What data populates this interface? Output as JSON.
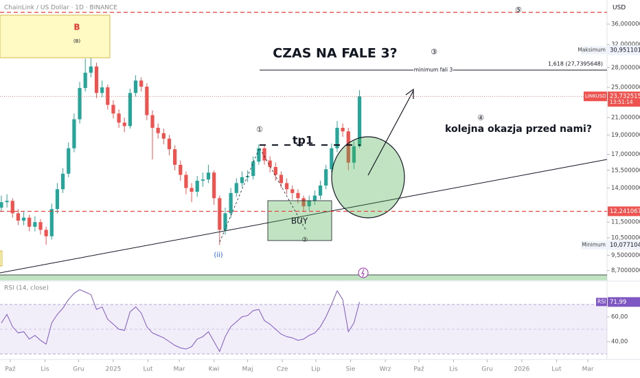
{
  "chart_data": [
    {
      "type": "candlestick",
      "title": "ChainLink / US Dollar · 1D · BINANCE",
      "currency": "USD",
      "symbol": "LINKUSD",
      "countdown": "13:51:14",
      "up_color": "#26a69a",
      "down_color": "#ef5350",
      "log_scale": true,
      "x": [
        -8,
        -3,
        2,
        7,
        12,
        17,
        22,
        27,
        32,
        37,
        42,
        47,
        52,
        57,
        62,
        67,
        72,
        77,
        82,
        87,
        92,
        97,
        102,
        107,
        112,
        117,
        122,
        127,
        132,
        137,
        142,
        147,
        152,
        157,
        162,
        167,
        172,
        177,
        182,
        187,
        192,
        197,
        202,
        207,
        212,
        217,
        222,
        227,
        232,
        237,
        242,
        247,
        252,
        257,
        262,
        267,
        272,
        277,
        282,
        287,
        292,
        297,
        302,
        307,
        312
      ],
      "open": [
        12.5,
        12.9,
        13.0,
        12.1,
        11.6,
        11.8,
        11.2,
        11.5,
        11.0,
        10.6,
        12.4,
        13.9,
        15.2,
        17.6,
        20.8,
        24.9,
        27.2,
        28.2,
        24.2,
        25.0,
        22.6,
        21.5,
        20.4,
        20.0,
        24.2,
        26.0,
        25.1,
        21.3,
        19.8,
        19.2,
        18.6,
        17.5,
        16.0,
        15.1,
        14.0,
        13.7,
        14.6,
        14.7,
        15.3,
        13.2,
        11.0,
        12.1,
        13.6,
        14.4,
        14.9,
        15.0,
        16.3,
        17.6,
        16.4,
        15.8,
        15.1,
        14.4,
        13.9,
        13.6,
        13.2,
        12.6,
        13.0,
        13.4,
        14.2,
        15.6,
        17.6,
        19.8,
        19.4,
        16.2,
        17.8
      ],
      "high": [
        13.4,
        13.5,
        13.2,
        12.4,
        12.2,
        12.0,
        11.9,
        11.7,
        11.2,
        12.8,
        14.4,
        15.7,
        18.2,
        21.5,
        25.8,
        29.5,
        30.9511019,
        28.8,
        26.0,
        25.4,
        23.2,
        22.0,
        21.0,
        24.8,
        26.8,
        26.5,
        25.6,
        21.9,
        20.3,
        19.7,
        19.0,
        17.9,
        16.4,
        15.4,
        14.4,
        15.0,
        15.3,
        16.0,
        15.5,
        13.4,
        12.5,
        14.0,
        14.8,
        15.4,
        15.5,
        16.8,
        18.0,
        17.9,
        16.8,
        16.2,
        15.4,
        14.8,
        14.2,
        13.9,
        13.4,
        13.4,
        13.8,
        14.6,
        16.0,
        18.1,
        20.6,
        20.3,
        19.8,
        18.3,
        24.6
      ],
      "low": [
        12.2,
        12.5,
        11.8,
        11.3,
        11.3,
        10.9,
        10.9,
        10.7,
        10.1,
        10.4,
        12.1,
        13.6,
        14.9,
        17.2,
        20.3,
        24.4,
        26.5,
        23.5,
        23.6,
        22.0,
        20.9,
        19.8,
        19.3,
        19.7,
        23.7,
        24.4,
        20.7,
        16.5,
        18.6,
        18.0,
        16.9,
        15.5,
        14.6,
        13.5,
        12.9,
        13.3,
        14.1,
        14.4,
        12.7,
        10.077104,
        10.7,
        11.8,
        13.3,
        14.1,
        14.5,
        14.7,
        16.0,
        16.0,
        15.3,
        14.6,
        14.0,
        13.5,
        13.1,
        12.8,
        12.2,
        12.3,
        12.7,
        13.1,
        13.9,
        15.3,
        17.2,
        18.8,
        15.5,
        15.6,
        17.6
      ],
      "close": [
        12.9,
        13.0,
        12.1,
        11.6,
        11.8,
        11.2,
        11.5,
        11.0,
        10.6,
        12.4,
        13.9,
        15.2,
        17.6,
        20.8,
        24.9,
        27.2,
        28.2,
        24.2,
        25.0,
        22.6,
        21.5,
        20.4,
        20.0,
        24.2,
        26.0,
        25.1,
        21.3,
        19.8,
        19.2,
        18.6,
        17.5,
        16.0,
        15.1,
        14.0,
        13.7,
        14.6,
        14.7,
        15.3,
        13.2,
        11.0,
        12.1,
        13.6,
        14.4,
        14.9,
        15.0,
        16.3,
        17.6,
        16.4,
        15.8,
        15.1,
        14.4,
        13.9,
        13.6,
        13.2,
        12.6,
        13.0,
        13.4,
        14.2,
        15.6,
        17.6,
        19.8,
        19.4,
        16.2,
        17.8,
        23.7325156
      ],
      "close_label": "23,7325156",
      "xlim": [
        -9.2,
        533.1
      ],
      "ylim": [
        8.22,
        41.35
      ],
      "yticks": [
        {
          "value": 36,
          "label": "36,0000000"
        },
        {
          "value": 32,
          "label": "32,0000000"
        },
        {
          "value": 28,
          "label": "28,0000000"
        },
        {
          "value": 25,
          "label": "25,0000000"
        },
        {
          "value": 21,
          "label": "21,0000000"
        },
        {
          "value": 19,
          "label": "19,0000000"
        },
        {
          "value": 17,
          "label": "17,0000000"
        },
        {
          "value": 15.5,
          "label": "15,5000000"
        },
        {
          "value": 14,
          "label": "14,0000000"
        },
        {
          "value": 11.5,
          "label": "11,5000000"
        },
        {
          "value": 10.5,
          "label": "10,5000000"
        },
        {
          "value": 9.5,
          "label": "9,5000000"
        },
        {
          "value": 8.7,
          "label": "8,7000000"
        }
      ],
      "xticks": [
        {
          "value": 0,
          "label": "Paź"
        },
        {
          "value": 31,
          "label": "Lis"
        },
        {
          "value": 61,
          "label": "Gru"
        },
        {
          "value": 92,
          "label": "2025"
        },
        {
          "value": 123,
          "label": "Lut"
        },
        {
          "value": 151,
          "label": "Mar"
        },
        {
          "value": 182,
          "label": "Kwi"
        },
        {
          "value": 212,
          "label": "Maj"
        },
        {
          "value": 243,
          "label": "Cze"
        },
        {
          "value": 273,
          "label": "Lip"
        },
        {
          "value": 304,
          "label": "Sie"
        },
        {
          "value": 335,
          "label": "Wrz"
        },
        {
          "value": 365,
          "label": "Paź"
        },
        {
          "value": 396,
          "label": "Lis"
        },
        {
          "value": 426,
          "label": "Gru"
        },
        {
          "value": 457,
          "label": "2026"
        },
        {
          "value": 488,
          "label": "Lut"
        },
        {
          "value": 516,
          "label": "Mar"
        }
      ],
      "maximum": {
        "name": "Maksimum",
        "value": 30.9511019,
        "label": "30,9511019"
      },
      "minimum": {
        "name": "Minimum",
        "value": 10.077104,
        "label": "10,0771040"
      },
      "level": {
        "value": 12.2410673,
        "label": "12,2410673"
      },
      "annotations": {
        "wave_b": "B",
        "wave_b_sub": "(B)",
        "headline": "CZAS NA FALE 3?",
        "wave3": "③",
        "fib_label": "minimum fali 3",
        "fib_value": "1,618 (27,7395648)",
        "wave4": "④",
        "question": "kolejna okazja przed nami?",
        "wave1": "①",
        "tp": "tp1",
        "buy": "BUY",
        "wave2": "②",
        "wave_ii": "(ii)",
        "wave5": "⑤"
      }
    },
    {
      "type": "line",
      "title": "RSI (14, close)",
      "x": [
        -8,
        -3,
        2,
        7,
        12,
        17,
        22,
        27,
        32,
        37,
        42,
        47,
        52,
        57,
        62,
        67,
        72,
        77,
        82,
        87,
        92,
        97,
        102,
        107,
        112,
        117,
        122,
        127,
        132,
        137,
        142,
        147,
        152,
        157,
        162,
        167,
        172,
        177,
        182,
        187,
        192,
        197,
        202,
        207,
        212,
        217,
        222,
        227,
        232,
        237,
        242,
        247,
        252,
        257,
        262,
        267,
        272,
        277,
        282,
        287,
        292,
        297,
        302,
        307,
        312
      ],
      "series": [
        {
          "name": "RSI",
          "color": "#7e57c2",
          "values": [
            55,
            62,
            52,
            47,
            48,
            42,
            45,
            41,
            38,
            55,
            62,
            67,
            74,
            79,
            82,
            80,
            78,
            66,
            68,
            58,
            54,
            50,
            49,
            64,
            68,
            63,
            52,
            47,
            45,
            43,
            40,
            37,
            35,
            34,
            36,
            42,
            44,
            48,
            40,
            32,
            44,
            52,
            56,
            60,
            61,
            65,
            66,
            57,
            54,
            50,
            46,
            44,
            43,
            41,
            42,
            45,
            47,
            52,
            60,
            70,
            81,
            74,
            48,
            55,
            71.99
          ],
          "last_label": "71,99"
        }
      ],
      "xlim": [
        -9.2,
        533.1
      ],
      "ylim": [
        25.6,
        88.3
      ],
      "yticks": [
        {
          "value": 40,
          "label": "40,00"
        },
        {
          "value": 60,
          "label": "60,00"
        }
      ]
    }
  ]
}
